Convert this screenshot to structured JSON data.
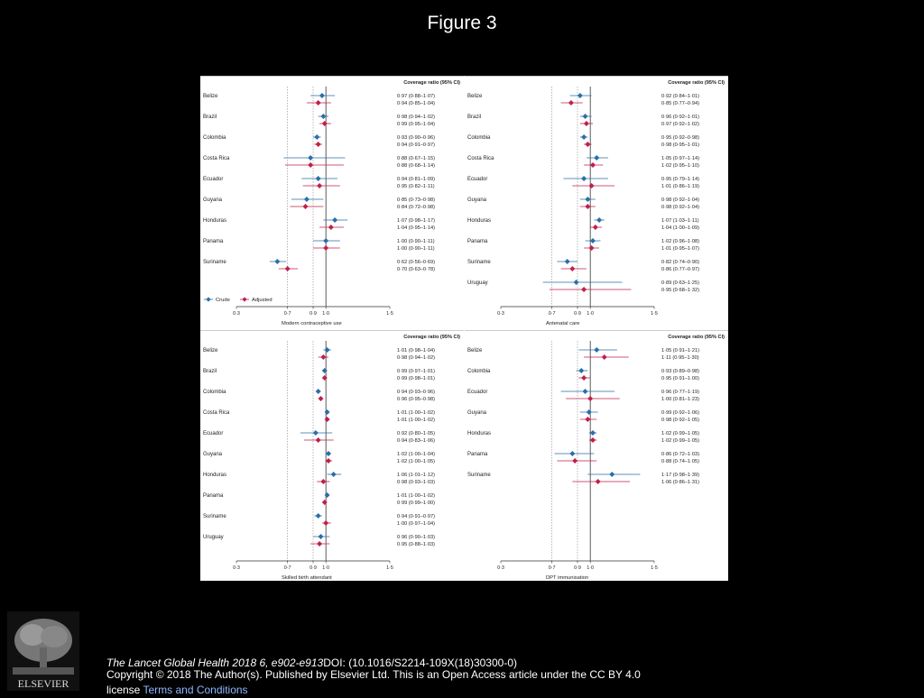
{
  "slide": {
    "title": "Figure 3",
    "citation_journal": "The Lancet Global Health",
    "citation_ref": " 2018 6, e902-e913",
    "citation_doi": "DOI: (10.1016/S2214-109X(18)30300-0)",
    "copyright": "Copyright © 2018 The Author(s). Published by Elsevier Ltd. This is an Open Access article under the CC BY 4.0 license",
    "terms_link": "Terms and Conditions",
    "logo_text": "ELSEVIER",
    "logo_icon": "elsevier-tree-logo-icon"
  },
  "colors": {
    "crude": "#2a6ea8",
    "adjusted": "#c01f4a",
    "axis": "#333333",
    "guide": "#888888"
  },
  "chart_data": [
    {
      "type": "forest",
      "xlabel": "Modern contraceptive use",
      "column_header": "Coverage ratio (95% CI)",
      "xticks": [
        0.3,
        0.7,
        0.9,
        1.0,
        1.5
      ],
      "tick_labels": [
        "0·3",
        "0·7",
        "0·9",
        "1·0",
        "1·5"
      ],
      "xlim": [
        0.3,
        1.5
      ],
      "reference_lines": [
        0.7,
        0.9,
        1.0
      ],
      "legend": {
        "placement": "bottom-left",
        "entries": [
          "Crude",
          "Adjusted"
        ]
      },
      "rows": [
        {
          "label": "Belize",
          "crude": [
            0.97,
            0.88,
            1.07
          ],
          "adjusted": [
            0.94,
            0.85,
            1.04
          ],
          "crude_text": "0·97 (0·88–1·07)",
          "adjusted_text": "0·94 (0·85–1·04)"
        },
        {
          "label": "Brazil",
          "crude": [
            0.98,
            0.94,
            1.02
          ],
          "adjusted": [
            0.99,
            0.95,
            1.04
          ],
          "crude_text": "0·98 (0·94–1·02)",
          "adjusted_text": "0·99 (0·95–1·04)"
        },
        {
          "label": "Colombia",
          "crude": [
            0.93,
            0.9,
            0.96
          ],
          "adjusted": [
            0.94,
            0.91,
            0.97
          ],
          "crude_text": "0·93 (0·90–0·96)",
          "adjusted_text": "0·94 (0·91–0·97)"
        },
        {
          "label": "Costa Rica",
          "crude": [
            0.88,
            0.67,
            1.15
          ],
          "adjusted": [
            0.88,
            0.68,
            1.14
          ],
          "crude_text": "0·88 (0·67–1·15)",
          "adjusted_text": "0·88 (0·68–1·14)"
        },
        {
          "label": "Ecuador",
          "crude": [
            0.94,
            0.81,
            1.09
          ],
          "adjusted": [
            0.95,
            0.82,
            1.11
          ],
          "crude_text": "0·94 (0·81–1·09)",
          "adjusted_text": "0·95 (0·82–1·11)"
        },
        {
          "label": "Guyana",
          "crude": [
            0.85,
            0.73,
            0.98
          ],
          "adjusted": [
            0.84,
            0.72,
            0.98
          ],
          "crude_text": "0·85 (0·73–0·98)",
          "adjusted_text": "0·84 (0·72–0·98)"
        },
        {
          "label": "Honduras",
          "crude": [
            1.07,
            0.98,
            1.17
          ],
          "adjusted": [
            1.04,
            0.95,
            1.14
          ],
          "crude_text": "1·07 (0·98–1·17)",
          "adjusted_text": "1·04 (0·95–1·14)"
        },
        {
          "label": "Panama",
          "crude": [
            1.0,
            0.9,
            1.11
          ],
          "adjusted": [
            1.0,
            0.9,
            1.11
          ],
          "crude_text": "1·00 (0·90–1·11)",
          "adjusted_text": "1·00 (0·90–1·11)"
        },
        {
          "label": "Suriname",
          "crude": [
            0.62,
            0.56,
            0.69
          ],
          "adjusted": [
            0.7,
            0.63,
            0.78
          ],
          "crude_text": "0·62 (0·56–0·69)",
          "adjusted_text": "0·70 (0·63–0·78)"
        }
      ]
    },
    {
      "type": "forest",
      "xlabel": "Antenatal care",
      "column_header": "Coverage ratio (95% CI)",
      "xticks": [
        0.3,
        0.7,
        0.9,
        1.0,
        1.5
      ],
      "tick_labels": [
        "0·3",
        "0·7",
        "0·9",
        "1·0",
        "1·5"
      ],
      "xlim": [
        0.3,
        1.5
      ],
      "reference_lines": [
        0.7,
        0.9,
        1.0
      ],
      "rows": [
        {
          "label": "Belize",
          "crude": [
            0.92,
            0.84,
            1.01
          ],
          "adjusted": [
            0.85,
            0.77,
            0.94
          ],
          "crude_text": "0·92 (0·84–1·01)",
          "adjusted_text": "0·85 (0·77–0·94)"
        },
        {
          "label": "Brazil",
          "crude": [
            0.96,
            0.92,
            1.01
          ],
          "adjusted": [
            0.97,
            0.92,
            1.02
          ],
          "crude_text": "0·96 (0·92–1·01)",
          "adjusted_text": "0·97 (0·92–1·02)"
        },
        {
          "label": "Colombia",
          "crude": [
            0.95,
            0.92,
            0.98
          ],
          "adjusted": [
            0.98,
            0.95,
            1.01
          ],
          "crude_text": "0·95 (0·92–0·98)",
          "adjusted_text": "0·98 (0·95–1·01)"
        },
        {
          "label": "Costa Rica",
          "crude": [
            1.05,
            0.97,
            1.14
          ],
          "adjusted": [
            1.02,
            0.95,
            1.1
          ],
          "crude_text": "1·05 (0·97–1·14)",
          "adjusted_text": "1·02 (0·95–1·10)"
        },
        {
          "label": "Ecuador",
          "crude": [
            0.95,
            0.79,
            1.14
          ],
          "adjusted": [
            1.01,
            0.86,
            1.19
          ],
          "crude_text": "0·95 (0·79–1·14)",
          "adjusted_text": "1·01 (0·86–1·19)"
        },
        {
          "label": "Guyana",
          "crude": [
            0.98,
            0.92,
            1.04
          ],
          "adjusted": [
            0.98,
            0.92,
            1.04
          ],
          "crude_text": "0·98 (0·92–1·04)",
          "adjusted_text": "0·98 (0·92–1·04)"
        },
        {
          "label": "Honduras",
          "crude": [
            1.07,
            1.03,
            1.11
          ],
          "adjusted": [
            1.04,
            1.0,
            1.09
          ],
          "crude_text": "1·07 (1·03–1·11)",
          "adjusted_text": "1·04 (1·00–1·09)"
        },
        {
          "label": "Panama",
          "crude": [
            1.02,
            0.96,
            1.08
          ],
          "adjusted": [
            1.01,
            0.95,
            1.07
          ],
          "crude_text": "1·02 (0·96–1·08)",
          "adjusted_text": "1·01 (0·95–1·07)"
        },
        {
          "label": "Suriname",
          "crude": [
            0.82,
            0.74,
            0.9
          ],
          "adjusted": [
            0.86,
            0.77,
            0.97
          ],
          "crude_text": "0·82 (0·74–0·90)",
          "adjusted_text": "0·86 (0·77–0·97)"
        },
        {
          "label": "Uruguay",
          "crude": [
            0.89,
            0.63,
            1.25
          ],
          "adjusted": [
            0.95,
            0.68,
            1.32
          ],
          "crude_text": "0·89 (0·63–1·25)",
          "adjusted_text": "0·95 (0·68–1·32)"
        }
      ]
    },
    {
      "type": "forest",
      "xlabel": "Skilled birth attendant",
      "column_header": "Coverage ratio (95% CI)",
      "xticks": [
        0.3,
        0.7,
        0.9,
        1.0,
        1.5
      ],
      "tick_labels": [
        "0·3",
        "0·7",
        "0·9",
        "1·0",
        "1·5"
      ],
      "xlim": [
        0.3,
        1.5
      ],
      "reference_lines": [
        0.7,
        0.9,
        1.0
      ],
      "rows": [
        {
          "label": "Belize",
          "crude": [
            1.01,
            0.98,
            1.04
          ],
          "adjusted": [
            0.98,
            0.94,
            1.02
          ],
          "crude_text": "1·01 (0·98–1·04)",
          "adjusted_text": "0·98 (0·94–1·02)"
        },
        {
          "label": "Brazil",
          "crude": [
            0.99,
            0.97,
            1.01
          ],
          "adjusted": [
            0.99,
            0.98,
            1.01
          ],
          "crude_text": "0·99 (0·97–1·01)",
          "adjusted_text": "0·99 (0·98–1·01)"
        },
        {
          "label": "Colombia",
          "crude": [
            0.94,
            0.93,
            0.96
          ],
          "adjusted": [
            0.96,
            0.95,
            0.98
          ],
          "crude_text": "0·94 (0·93–0·96)",
          "adjusted_text": "0·96 (0·95–0·98)"
        },
        {
          "label": "Costa Rica",
          "crude": [
            1.01,
            1.0,
            1.02
          ],
          "adjusted": [
            1.01,
            1.0,
            1.02
          ],
          "crude_text": "1·01 (1·00–1·02)",
          "adjusted_text": "1·01 (1·00–1·02)"
        },
        {
          "label": "Ecuador",
          "crude": [
            0.92,
            0.8,
            1.05
          ],
          "adjusted": [
            0.94,
            0.83,
            1.06
          ],
          "crude_text": "0·92 (0·80–1·05)",
          "adjusted_text": "0·94 (0·83–1·06)"
        },
        {
          "label": "Guyana",
          "crude": [
            1.02,
            1.0,
            1.04
          ],
          "adjusted": [
            1.02,
            1.0,
            1.05
          ],
          "crude_text": "1·02 (1·00–1·04)",
          "adjusted_text": "1·02 (1·00–1·05)"
        },
        {
          "label": "Honduras",
          "crude": [
            1.06,
            1.01,
            1.12
          ],
          "adjusted": [
            0.98,
            0.93,
            1.03
          ],
          "crude_text": "1·06 (1·01–1·12)",
          "adjusted_text": "0·98 (0·93–1·03)"
        },
        {
          "label": "Panama",
          "crude": [
            1.01,
            1.0,
            1.02
          ],
          "adjusted": [
            0.99,
            0.99,
            1.0
          ],
          "crude_text": "1·01 (1·00–1·02)",
          "adjusted_text": "0·99 (0·99–1·00)"
        },
        {
          "label": "Suriname",
          "crude": [
            0.94,
            0.91,
            0.97
          ],
          "adjusted": [
            1.0,
            0.97,
            1.04
          ],
          "crude_text": "0·94 (0·91–0·97)",
          "adjusted_text": "1·00 (0·97–1·04)"
        },
        {
          "label": "Uruguay",
          "crude": [
            0.96,
            0.9,
            1.03
          ],
          "adjusted": [
            0.95,
            0.88,
            1.03
          ],
          "crude_text": "0·96 (0·90–1·03)",
          "adjusted_text": "0·95 (0·88–1·03)"
        }
      ]
    },
    {
      "type": "forest",
      "xlabel": "DPT immunisation",
      "column_header": "Coverage ratio (95% CI)",
      "xticks": [
        0.3,
        0.7,
        0.9,
        1.0,
        1.5
      ],
      "tick_labels": [
        "0·3",
        "0·7",
        "0·9",
        "1·0",
        "1·5"
      ],
      "xlim": [
        0.3,
        1.5
      ],
      "reference_lines": [
        0.7,
        0.9,
        1.0
      ],
      "rows": [
        {
          "label": "Belize",
          "crude": [
            1.05,
            0.91,
            1.21
          ],
          "adjusted": [
            1.11,
            0.95,
            1.3
          ],
          "crude_text": "1·05 (0·91–1·21)",
          "adjusted_text": "1·11 (0·95–1·30)"
        },
        {
          "label": "Colombia",
          "crude": [
            0.93,
            0.89,
            0.98
          ],
          "adjusted": [
            0.95,
            0.91,
            1.0
          ],
          "crude_text": "0·93 (0·89–0·98)",
          "adjusted_text": "0·95 (0·91–1·00)"
        },
        {
          "label": "Ecuador",
          "crude": [
            0.96,
            0.77,
            1.19
          ],
          "adjusted": [
            1.0,
            0.81,
            1.23
          ],
          "crude_text": "0·96 (0·77–1·19)",
          "adjusted_text": "1·00 (0·81–1·23)"
        },
        {
          "label": "Guyana",
          "crude": [
            0.99,
            0.92,
            1.06
          ],
          "adjusted": [
            0.98,
            0.92,
            1.05
          ],
          "crude_text": "0·99 (0·92–1·06)",
          "adjusted_text": "0·98 (0·92–1·05)"
        },
        {
          "label": "Honduras",
          "crude": [
            1.02,
            0.99,
            1.05
          ],
          "adjusted": [
            1.02,
            0.99,
            1.05
          ],
          "crude_text": "1·02 (0·99–1·05)",
          "adjusted_text": "1·02 (0·99–1·05)"
        },
        {
          "label": "Panama",
          "crude": [
            0.86,
            0.72,
            1.03
          ],
          "adjusted": [
            0.88,
            0.74,
            1.05
          ],
          "crude_text": "0·86 (0·72–1·03)",
          "adjusted_text": "0·88 (0·74–1·05)"
        },
        {
          "label": "Suriname",
          "crude": [
            1.17,
            0.98,
            1.39
          ],
          "adjusted": [
            1.06,
            0.86,
            1.31
          ],
          "crude_text": "1·17 (0·98–1·39)",
          "adjusted_text": "1·06 (0·86–1·31)"
        }
      ]
    }
  ]
}
